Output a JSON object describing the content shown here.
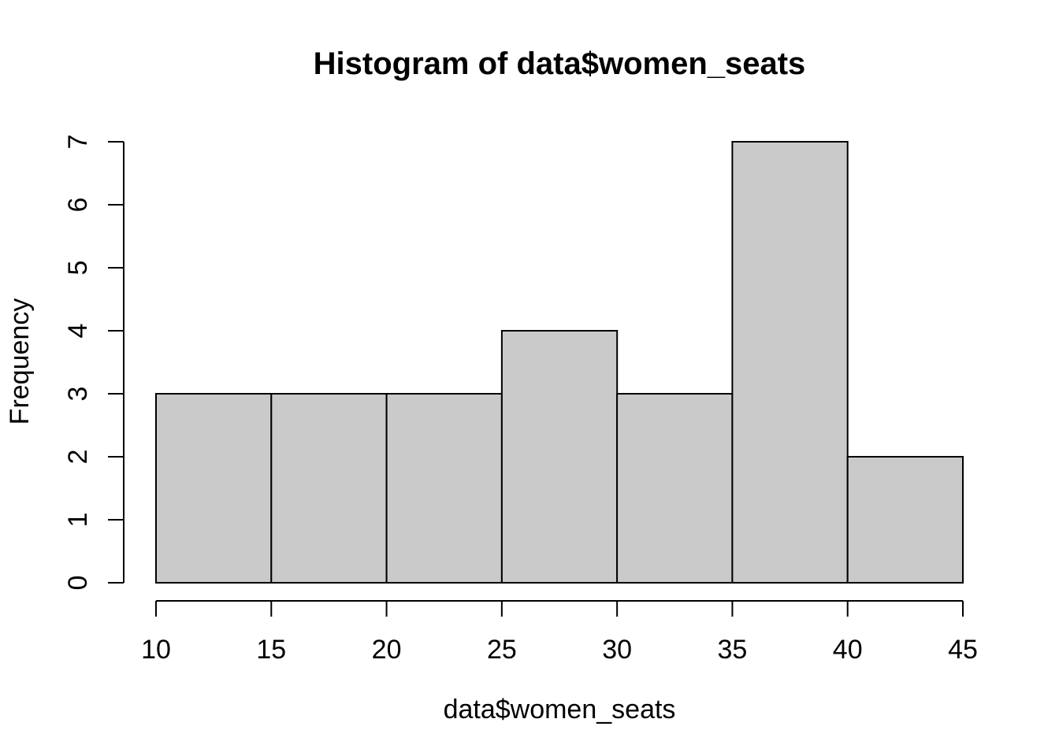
{
  "figure": {
    "background": "#FFFFFF"
  },
  "chart_data": {
    "type": "histogram",
    "title": "Histogram of data$women_seats",
    "xlabel": "data$women_seats",
    "ylabel": "Frequency",
    "bin_edges": [
      10,
      15,
      20,
      25,
      30,
      35,
      40,
      45
    ],
    "counts": [
      3,
      3,
      3,
      4,
      3,
      7,
      2
    ],
    "xticks": [
      10,
      15,
      20,
      25,
      30,
      35,
      40,
      45
    ],
    "yticks": [
      0,
      1,
      2,
      3,
      4,
      5,
      6,
      7
    ],
    "xlim": [
      10,
      45
    ],
    "ylim": [
      0,
      7
    ],
    "grid": false,
    "legend": null,
    "bar_fill": "#CACACA",
    "bar_stroke": "#000000",
    "axis_color": "#000000",
    "text_color": "#000000"
  }
}
